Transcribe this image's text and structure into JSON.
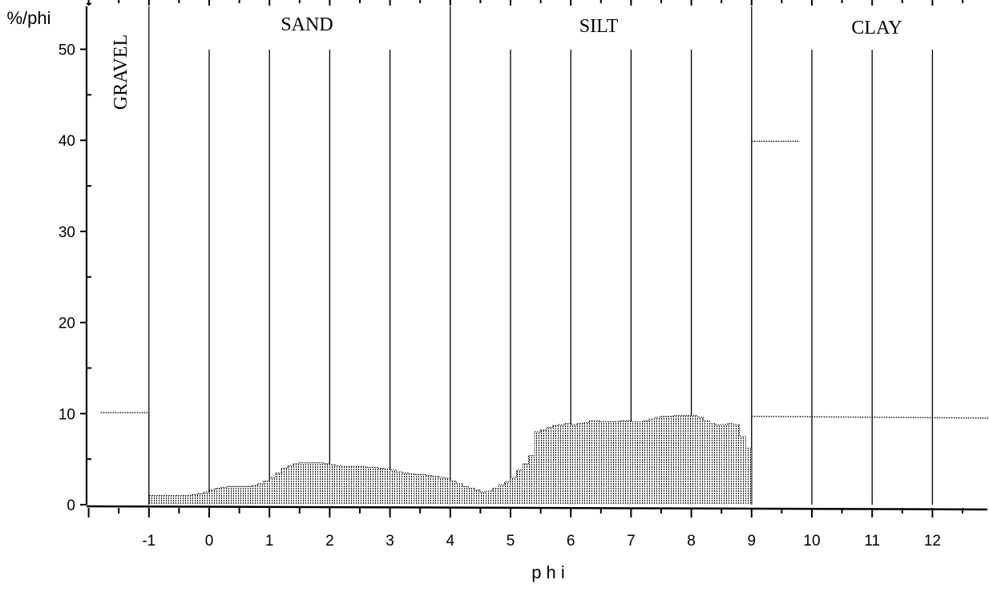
{
  "chart_data": {
    "type": "bar",
    "xlabel": "p h i",
    "ylabel": "%/phi",
    "xlim": [
      -2,
      13
    ],
    "ylim": [
      0,
      55
    ],
    "x_ticks": [
      -1,
      0,
      1,
      2,
      3,
      4,
      5,
      6,
      7,
      8,
      9,
      10,
      11,
      12
    ],
    "x_tick_labels": [
      "-1",
      "0",
      "1",
      "2",
      "3",
      "4",
      "5",
      "6",
      "7",
      "8",
      "9",
      "10",
      "11",
      "12"
    ],
    "y_ticks": [
      0,
      10,
      20,
      30,
      40,
      50
    ],
    "y_tick_labels": [
      "0",
      "10",
      "20",
      "30",
      "40",
      "50"
    ],
    "grid": "vertical lines at integer phi",
    "regions": [
      {
        "label": "GRAVEL",
        "from": -2,
        "to": -1,
        "orientation": "vertical"
      },
      {
        "label": "SAND",
        "from": -1,
        "to": 4,
        "orientation": "horizontal"
      },
      {
        "label": "SILT",
        "from": 4,
        "to": 9,
        "orientation": "horizontal"
      },
      {
        "label": "CLAY",
        "from": 9,
        "to": 13,
        "orientation": "horizontal"
      }
    ],
    "bin_width": 0.1,
    "x": [
      -1.0,
      -0.9,
      -0.8,
      -0.7,
      -0.6,
      -0.5,
      -0.4,
      -0.3,
      -0.2,
      -0.1,
      0.0,
      0.1,
      0.2,
      0.3,
      0.4,
      0.5,
      0.6,
      0.7,
      0.8,
      0.9,
      1.0,
      1.1,
      1.2,
      1.3,
      1.4,
      1.5,
      1.6,
      1.7,
      1.8,
      1.9,
      2.0,
      2.1,
      2.2,
      2.3,
      2.4,
      2.5,
      2.6,
      2.7,
      2.8,
      2.9,
      3.0,
      3.1,
      3.2,
      3.3,
      3.4,
      3.5,
      3.6,
      3.7,
      3.8,
      3.9,
      4.0,
      4.1,
      4.2,
      4.3,
      4.4,
      4.5,
      4.6,
      4.7,
      4.8,
      4.9,
      5.0,
      5.1,
      5.2,
      5.3,
      5.4,
      5.5,
      5.6,
      5.7,
      5.8,
      5.9,
      6.0,
      6.1,
      6.2,
      6.3,
      6.4,
      6.5,
      6.6,
      6.7,
      6.8,
      6.9,
      7.0,
      7.1,
      7.2,
      7.3,
      7.4,
      7.5,
      7.6,
      7.7,
      7.8,
      7.9,
      8.0,
      8.1,
      8.2,
      8.3,
      8.4,
      8.5,
      8.6,
      8.7,
      8.8,
      8.9
    ],
    "values": [
      1.0,
      1.0,
      1.0,
      1.0,
      1.0,
      1.0,
      1.0,
      1.1,
      1.2,
      1.4,
      1.6,
      1.8,
      1.9,
      2.0,
      2.0,
      2.0,
      2.0,
      2.1,
      2.3,
      2.6,
      3.0,
      3.5,
      4.0,
      4.3,
      4.5,
      4.6,
      4.6,
      4.6,
      4.6,
      4.5,
      4.4,
      4.3,
      4.2,
      4.2,
      4.2,
      4.2,
      4.1,
      4.1,
      4.0,
      3.9,
      3.8,
      3.6,
      3.5,
      3.4,
      3.3,
      3.3,
      3.2,
      3.1,
      3.0,
      2.9,
      2.6,
      2.3,
      2.0,
      1.8,
      1.6,
      1.4,
      1.5,
      1.8,
      2.2,
      2.5,
      3.0,
      3.8,
      4.5,
      5.4,
      8.0,
      8.2,
      8.5,
      8.7,
      8.8,
      8.9,
      8.8,
      8.9,
      9.0,
      9.2,
      9.2,
      9.1,
      9.1,
      9.1,
      9.2,
      9.2,
      9.1,
      9.1,
      9.2,
      9.4,
      9.6,
      9.7,
      9.7,
      9.8,
      9.8,
      9.8,
      9.8,
      9.6,
      9.2,
      8.9,
      8.8,
      8.8,
      8.9,
      8.8,
      7.5,
      6.2
    ],
    "series": [
      {
        "segment": "gravel",
        "x": [
          -1.8,
          -1.0
        ],
        "y": [
          10.1,
          10.1
        ]
      },
      {
        "segment": "clay-upper",
        "x": [
          9.0,
          9.8
        ],
        "y": [
          39.9,
          39.9
        ]
      },
      {
        "segment": "clay-lower",
        "x": [
          9.0,
          13.0
        ],
        "y": [
          9.7,
          9.5
        ]
      }
    ]
  }
}
